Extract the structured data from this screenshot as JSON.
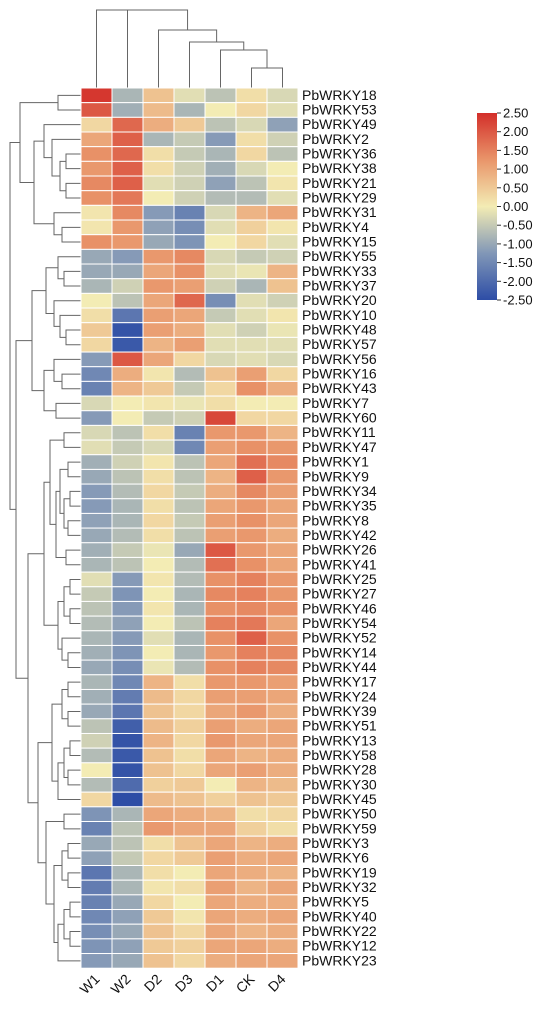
{
  "chart_data": {
    "type": "heatmap",
    "title": "",
    "columns": [
      "W1",
      "W2",
      "D2",
      "D3",
      "D1",
      "CK",
      "D4"
    ],
    "rows": [
      "PbWRKY18",
      "PbWRKY53",
      "PbWRKY49",
      "PbWRKY2",
      "PbWRKY36",
      "PbWRKY38",
      "PbWRKY21",
      "PbWRKY29",
      "PbWRKY31",
      "PbWRKY4",
      "PbWRKY15",
      "PbWRKY55",
      "PbWRKY33",
      "PbWRKY37",
      "PbWRKY20",
      "PbWRKY10",
      "PbWRKY48",
      "PbWRKY57",
      "PbWRKY56",
      "PbWRKY16",
      "PbWRKY43",
      "PbWRKY7",
      "PbWRKY60",
      "PbWRKY11",
      "PbWRKY47",
      "PbWRKY1",
      "PbWRKY9",
      "PbWRKY34",
      "PbWRKY35",
      "PbWRKY8",
      "PbWRKY42",
      "PbWRKY26",
      "PbWRKY41",
      "PbWRKY25",
      "PbWRKY27",
      "PbWRKY46",
      "PbWRKY54",
      "PbWRKY52",
      "PbWRKY14",
      "PbWRKY44",
      "PbWRKY17",
      "PbWRKY24",
      "PbWRKY39",
      "PbWRKY51",
      "PbWRKY13",
      "PbWRKY58",
      "PbWRKY28",
      "PbWRKY30",
      "PbWRKY45",
      "PbWRKY50",
      "PbWRKY59",
      "PbWRKY3",
      "PbWRKY6",
      "PbWRKY19",
      "PbWRKY32",
      "PbWRKY5",
      "PbWRKY40",
      "PbWRKY22",
      "PbWRKY12",
      "PbWRKY23"
    ],
    "values": [
      [
        2.4,
        -0.8,
        0.6,
        -0.2,
        -0.6,
        0.2,
        -0.3
      ],
      [
        2.0,
        -0.9,
        0.7,
        -0.8,
        0.0,
        0.3,
        -0.2
      ],
      [
        0.3,
        1.8,
        0.9,
        0.5,
        -0.6,
        -0.3,
        -1.1
      ],
      [
        1.0,
        1.9,
        -0.8,
        -0.5,
        -1.2,
        0.2,
        -0.4
      ],
      [
        1.3,
        1.8,
        0.2,
        -0.5,
        -0.8,
        0.3,
        -0.6
      ],
      [
        1.2,
        1.9,
        0.2,
        -0.4,
        -0.9,
        -0.3,
        0.0
      ],
      [
        1.4,
        1.9,
        -0.2,
        -0.4,
        -1.1,
        -0.6,
        0.1
      ],
      [
        1.3,
        1.6,
        0.0,
        -0.4,
        -0.7,
        -0.7,
        -0.2
      ],
      [
        0.1,
        1.4,
        -1.2,
        -1.6,
        -0.3,
        0.8,
        1.0
      ],
      [
        0.1,
        1.2,
        -1.1,
        -1.4,
        -0.2,
        0.4,
        0.1
      ],
      [
        1.3,
        1.2,
        -1.0,
        -1.3,
        0.0,
        0.3,
        -0.2
      ],
      [
        -1.0,
        -1.2,
        1.2,
        1.4,
        -0.3,
        -0.5,
        -0.4
      ],
      [
        -1.0,
        -1.0,
        1.0,
        1.3,
        -0.2,
        -0.1,
        0.8
      ],
      [
        -0.8,
        -0.4,
        1.2,
        1.1,
        -0.4,
        -0.8,
        0.6
      ],
      [
        0.0,
        -0.6,
        1.0,
        1.8,
        -1.4,
        -0.2,
        -0.4
      ],
      [
        0.2,
        -1.8,
        1.1,
        1.0,
        -0.5,
        -0.2,
        0.1
      ],
      [
        0.5,
        -2.4,
        1.1,
        0.9,
        -0.2,
        -0.4,
        -0.1
      ],
      [
        0.3,
        -2.3,
        0.8,
        1.1,
        -0.2,
        -0.2,
        -0.2
      ],
      [
        -1.2,
        2.0,
        1.0,
        0.3,
        -0.3,
        -0.2,
        -0.3
      ],
      [
        -1.5,
        0.9,
        0.1,
        -0.7,
        0.6,
        1.1,
        0.3
      ],
      [
        -1.6,
        0.8,
        0.5,
        -0.5,
        0.3,
        1.3,
        0.9
      ],
      [
        -0.3,
        0.0,
        0.1,
        -0.1,
        0.2,
        0.0,
        0.0
      ],
      [
        -1.2,
        0.0,
        -0.5,
        -0.4,
        2.2,
        0.3,
        0.3
      ],
      [
        -0.3,
        -0.6,
        0.2,
        -1.6,
        1.2,
        1.2,
        0.8
      ],
      [
        -0.2,
        -0.5,
        -0.3,
        -1.5,
        1.1,
        1.3,
        1.2
      ],
      [
        -0.9,
        -0.4,
        0.1,
        -0.6,
        1.0,
        1.7,
        1.4
      ],
      [
        -1.0,
        -0.6,
        0.2,
        -0.6,
        0.8,
        1.9,
        1.2
      ],
      [
        -1.2,
        -0.7,
        0.3,
        -0.5,
        0.9,
        1.4,
        1.1
      ],
      [
        -1.2,
        -0.8,
        0.2,
        -0.6,
        1.0,
        1.2,
        1.0
      ],
      [
        -1.1,
        -0.8,
        0.3,
        -0.5,
        1.1,
        1.3,
        1.0
      ],
      [
        -1.0,
        -0.7,
        0.2,
        -0.6,
        1.1,
        1.2,
        0.9
      ],
      [
        -0.9,
        -0.5,
        -0.1,
        -1.0,
        2.0,
        1.2,
        1.0
      ],
      [
        -0.8,
        -0.6,
        0.0,
        -0.7,
        1.7,
        1.3,
        1.0
      ],
      [
        -0.2,
        -1.2,
        0.1,
        -0.7,
        1.3,
        1.5,
        1.2
      ],
      [
        -0.5,
        -1.3,
        0.0,
        -0.8,
        1.4,
        1.5,
        1.2
      ],
      [
        -0.6,
        -1.2,
        0.1,
        -0.8,
        1.3,
        1.4,
        1.3
      ],
      [
        -0.7,
        -1.1,
        0.0,
        -0.6,
        1.5,
        1.6,
        1.0
      ],
      [
        -0.8,
        -1.2,
        -0.2,
        -0.8,
        1.3,
        1.9,
        1.3
      ],
      [
        -0.9,
        -1.3,
        0.0,
        -0.8,
        1.2,
        1.5,
        1.4
      ],
      [
        -1.0,
        -1.4,
        -0.1,
        -0.7,
        1.3,
        1.5,
        1.4
      ],
      [
        -0.8,
        -1.5,
        0.8,
        0.2,
        1.2,
        1.2,
        1.1
      ],
      [
        -0.9,
        -1.7,
        0.7,
        0.3,
        1.1,
        1.1,
        1.0
      ],
      [
        -1.0,
        -1.8,
        0.6,
        0.3,
        1.0,
        1.2,
        0.9
      ],
      [
        -0.6,
        -2.2,
        0.7,
        0.4,
        1.1,
        0.9,
        1.0
      ],
      [
        -0.4,
        -2.4,
        0.8,
        0.3,
        1.2,
        1.0,
        1.0
      ],
      [
        -0.7,
        -2.3,
        0.6,
        0.2,
        1.0,
        0.8,
        0.9
      ],
      [
        0.0,
        -2.4,
        0.6,
        0.3,
        1.0,
        1.1,
        0.9
      ],
      [
        -0.7,
        -2.0,
        0.4,
        0.5,
        0.0,
        0.8,
        0.7
      ],
      [
        0.3,
        -2.5,
        0.7,
        0.6,
        0.4,
        0.6,
        0.5
      ],
      [
        -1.3,
        -0.8,
        1.0,
        0.9,
        0.8,
        0.2,
        0.3
      ],
      [
        -1.6,
        -0.6,
        1.2,
        1.0,
        1.0,
        0.4,
        0.2
      ],
      [
        -1.0,
        -0.6,
        0.2,
        0.6,
        1.0,
        0.8,
        0.9
      ],
      [
        -1.1,
        -0.5,
        0.3,
        0.5,
        1.1,
        0.9,
        1.0
      ],
      [
        -1.8,
        -0.8,
        0.2,
        0.0,
        1.0,
        0.9,
        0.8
      ],
      [
        -1.7,
        -0.8,
        0.1,
        0.2,
        1.1,
        0.8,
        1.0
      ],
      [
        -1.6,
        -1.0,
        0.3,
        0.0,
        1.0,
        0.9,
        0.9
      ],
      [
        -1.5,
        -1.1,
        0.5,
        0.1,
        1.0,
        0.9,
        1.0
      ],
      [
        -1.4,
        -1.0,
        0.6,
        0.3,
        1.0,
        0.8,
        0.9
      ],
      [
        -1.3,
        -1.1,
        0.5,
        0.4,
        1.0,
        1.0,
        0.9
      ],
      [
        -1.2,
        -1.0,
        0.6,
        0.3,
        0.9,
        1.0,
        1.0
      ]
    ],
    "colorbar": {
      "ticks": [
        "2.50",
        "2.00",
        "1.50",
        "1.00",
        "0.50",
        "0.00",
        "-0.50",
        "-1.00",
        "-1.50",
        "-2.00",
        "-2.50"
      ],
      "range": [
        -2.5,
        2.5
      ],
      "colors": {
        "low": "#2d4da6",
        "mid": "#f3ecb4",
        "high": "#d32f2a"
      }
    },
    "dendrogram": {
      "rows": true,
      "columns": true
    },
    "xlabel": "",
    "ylabel": "",
    "legend": "right"
  }
}
